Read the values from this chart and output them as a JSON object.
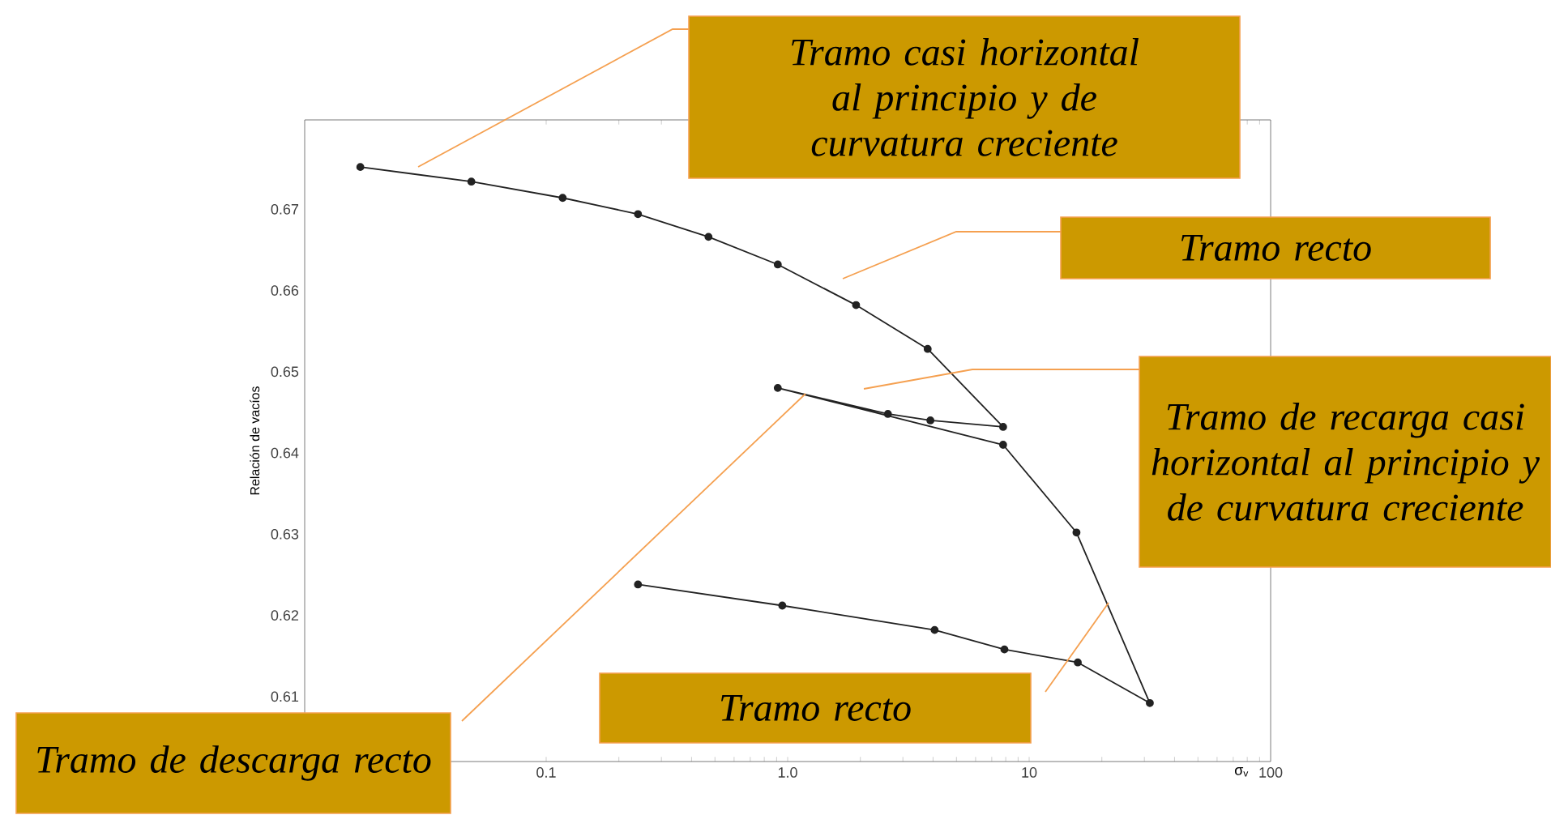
{
  "chart_data": {
    "type": "line",
    "xlabel": "σ$_{v}$",
    "ylabel": "Relación de vacíos",
    "log": "x",
    "xlim": [
      0.01,
      100
    ],
    "ylim": [
      0.602,
      0.681
    ],
    "xticks": [
      0.1,
      {
        "value": 1,
        "label": "1.0"
      },
      10,
      100
    ],
    "yticks": [
      0.61,
      0.62,
      0.63,
      0.64,
      0.65,
      0.66,
      0.67
    ],
    "marker": "circle",
    "line_style": "solid",
    "color": "#222222",
    "x": [
      0.017,
      0.049,
      0.117,
      0.24,
      0.47,
      0.91,
      1.92,
      3.8,
      7.8,
      3.9,
      2.6,
      0.91,
      7.8,
      15.7,
      31.6,
      15.9,
      7.9,
      4.06,
      0.95,
      0.24
    ],
    "values": [
      0.6752,
      0.6734,
      0.6714,
      0.6694,
      0.6666,
      0.6632,
      0.6582,
      0.6528,
      0.6432,
      0.644,
      0.6448,
      0.648,
      0.641,
      0.6302,
      0.6092,
      0.6142,
      0.6158,
      0.6182,
      0.6212,
      0.6238
    ],
    "annotations": [
      "Tramo casi horizontal al principio y de curvatura creciente",
      "Tramo recto",
      "Tramo de recarga casi horizontal al principio y de curvatura creciente",
      "Tramo de descarga recto",
      "Tramo recto"
    ]
  }
}
